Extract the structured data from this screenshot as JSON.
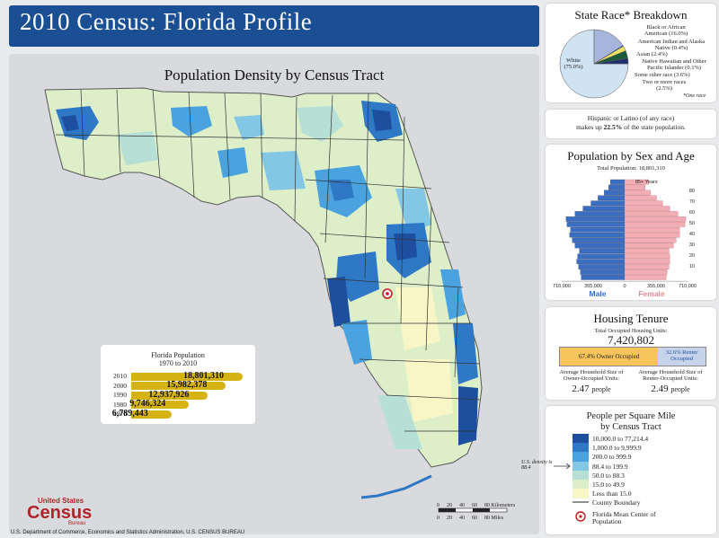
{
  "header": {
    "title": "2010 Census: Florida Profile"
  },
  "map": {
    "title": "Population Density by Census Tract"
  },
  "race": {
    "title": "State Race* Breakdown",
    "slices": [
      {
        "label": "White",
        "value": 75.0,
        "display": "(75.0%)",
        "color": "#cfe3f3"
      },
      {
        "label": "Black or African American",
        "value": 16.0,
        "display": "(16.0%)",
        "color": "#a7b5dd"
      },
      {
        "label": "American Indian and Alaska Native",
        "value": 0.4,
        "display": "(0.4%)",
        "color": "#3b6cbf"
      },
      {
        "label": "Asian",
        "value": 2.4,
        "display": "(2.4%)",
        "color": "#f0e266"
      },
      {
        "label": "Native Hawaiian and Other Pacific Islander",
        "value": 0.1,
        "display": "(0.1%)",
        "color": "#7fbf5a"
      },
      {
        "label": "Some other race",
        "value": 3.6,
        "display": "(3.6%)",
        "color": "#1b5c3a"
      },
      {
        "label": "Two or more races",
        "value": 2.5,
        "display": "(2.5%)",
        "color": "#1f2f6e"
      }
    ],
    "labels": {
      "white": "White (75.0%)",
      "black": "Black or African American (16.0%)",
      "aian": "American Indian and Alaska Native (0.4%)",
      "asian": "Asian (2.4%)",
      "nhpi": "Native Hawaiian and Other Pacific Islander (0.1%)",
      "other": "Some other race (3.6%)",
      "two": "Two or more races (2.5%)"
    },
    "footnote": "*One race"
  },
  "hispanic": {
    "line1": "Hispanic or Latino (of any race)",
    "line2_pre": "makes up ",
    "pct": "22.5%",
    "line2_post": " of the state population."
  },
  "pyramid": {
    "title": "Population by Sex and Age",
    "total_label": "Total Population: 18,801,310",
    "age_top": "85+ Years",
    "age_ticks": [
      "80",
      "70",
      "60",
      "50",
      "40",
      "30",
      "20",
      "10"
    ],
    "x_ticks_left": [
      "710,000",
      "355,000",
      "0"
    ],
    "x_ticks_right": [
      "355,000",
      "710,000"
    ],
    "male_label": "Male",
    "female_label": "Female",
    "male": [
      490,
      500,
      520,
      540,
      530,
      510,
      560,
      590,
      620,
      610,
      650,
      660,
      560,
      470,
      380,
      300,
      230,
      180,
      160
    ],
    "female": [
      470,
      480,
      500,
      510,
      510,
      500,
      550,
      580,
      620,
      620,
      680,
      690,
      600,
      510,
      430,
      360,
      290,
      230,
      270
    ]
  },
  "housing": {
    "title": "Housing Tenure",
    "total_label": "Total Occupied Housing Units:",
    "total": "7,420,802",
    "owner_label": "67.4% Owner Occupied",
    "owner_pct": 67.4,
    "renter_label": "32.6% Renter Occupied",
    "owner_avg_label": "Average Household Size of Owner-Occupied Units:",
    "owner_avg": "2.47",
    "renter_avg_label": "Average Household Size of Renter-Occupied Units:",
    "renter_avg": "2.49",
    "people": "people"
  },
  "legend": {
    "title_line1": "People per Square Mile",
    "title_line2": "by Census Tract",
    "classes": [
      {
        "label": "10,000.0 to 77,214.4",
        "color": "#1d4f9e"
      },
      {
        "label": "1,000.0 to 9,999.9",
        "color": "#2f78c6"
      },
      {
        "label": "200.0 to 999.9",
        "color": "#4aa3df"
      },
      {
        "label": "88.4 to 199.9",
        "color": "#83c7e5"
      },
      {
        "label": "50.0 to 88.3",
        "color": "#b6e0d6"
      },
      {
        "label": "15.0 to 49.9",
        "color": "#dcefc9"
      },
      {
        "label": "Less than 15.0",
        "color": "#f8f6c6"
      }
    ],
    "us_density": "U.S. density is 88.4",
    "county_boundary": "County Boundary",
    "mean_center": "Florida Mean Center of Population"
  },
  "history": {
    "title_line1": "Florida Population",
    "title_line2": "1970 to 2010",
    "rows": [
      {
        "year": "2010",
        "value": 18801310,
        "label": "18,801,310"
      },
      {
        "year": "2000",
        "value": 15982378,
        "label": "15,982,378"
      },
      {
        "year": "1990",
        "value": 12937926,
        "label": "12,937,926"
      },
      {
        "year": "1980",
        "value": 9746324,
        "label": "9,746,324"
      },
      {
        "year": "1970",
        "value": 6789443,
        "label": "6,789,443"
      }
    ]
  },
  "scale": {
    "km_ticks": [
      "0",
      "20",
      "40",
      "60",
      "80 Kilometers"
    ],
    "mi_ticks": [
      "0",
      "20",
      "40",
      "60",
      "80 Miles"
    ]
  },
  "logo": {
    "line1": "United States",
    "line2": "Census",
    "line3": "Bureau"
  },
  "footer": "U.S. Department of Commerce, Economics and Statistics Administration, U.S. CENSUS BUREAU"
}
